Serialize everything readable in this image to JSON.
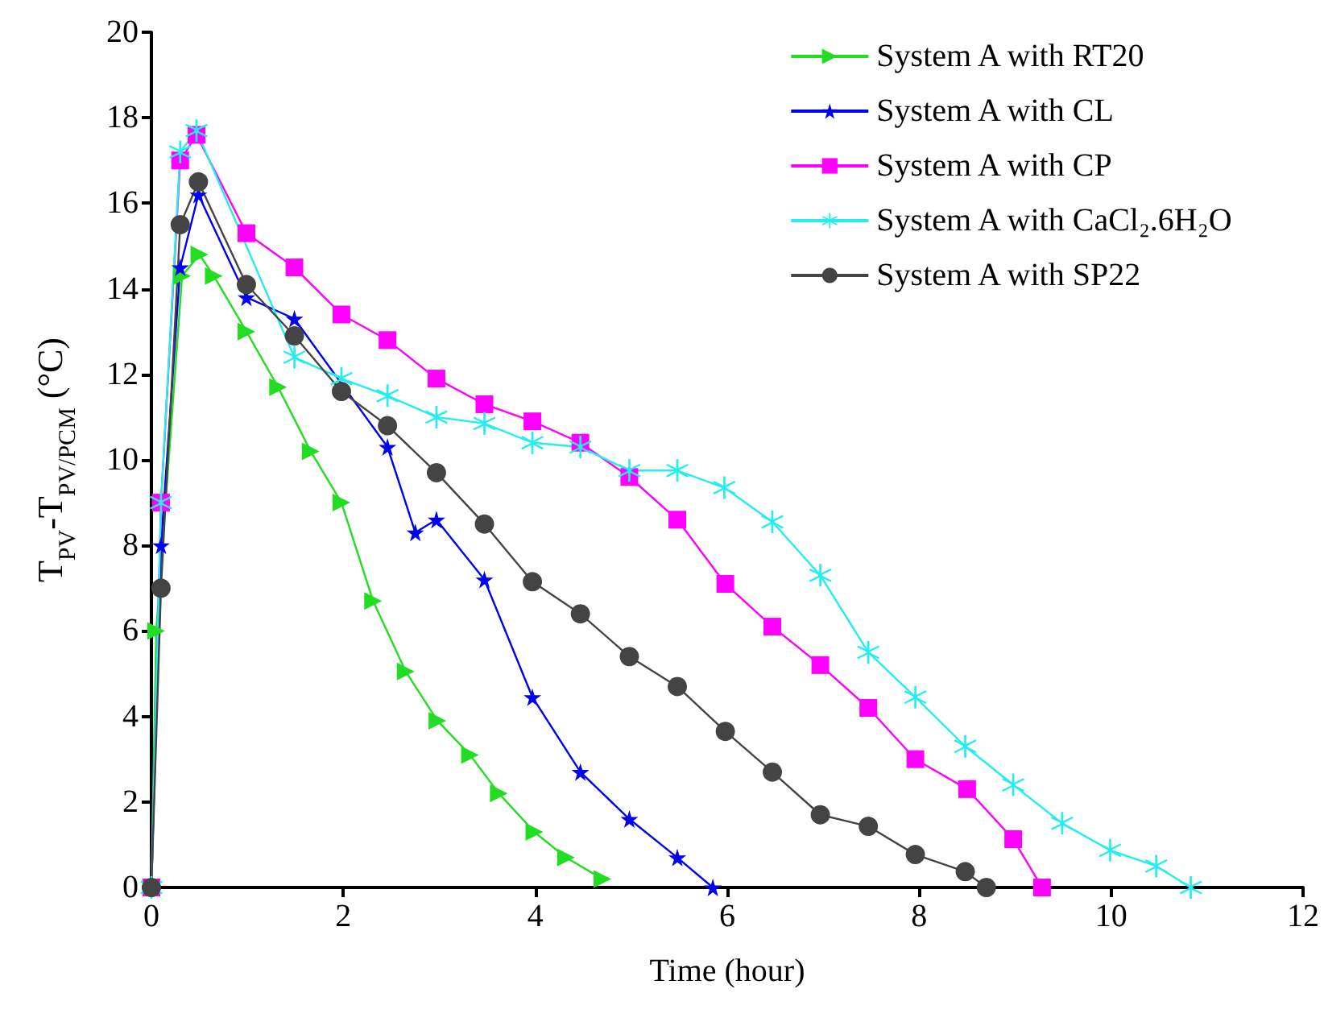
{
  "chart_data": {
    "type": "line",
    "xlabel": "Time (hour)",
    "ylabel": "T$_{PV}$-T$_{PV/PCM}$ (°C)",
    "xlim": [
      0,
      12
    ],
    "xticks": [
      0,
      2,
      4,
      6,
      8,
      10,
      12
    ],
    "ylim": [
      0,
      20
    ],
    "yticks": [
      0,
      2,
      4,
      6,
      8,
      10,
      12,
      14,
      16,
      18,
      20
    ],
    "grid": false,
    "legend": "top right",
    "line_style": "solid",
    "series": [
      {
        "name": "System A with RT20",
        "color": "#22dd22",
        "marker": "triangle",
        "x": [
          0,
          0.05,
          0.32,
          0.5,
          0.65,
          0.99,
          1.32,
          1.66,
          1.98,
          2.31,
          2.65,
          2.98,
          3.32,
          3.62,
          3.99,
          4.32,
          4.7
        ],
        "values": [
          0,
          6,
          14.3,
          14.8,
          14.3,
          13.0,
          11.7,
          10.2,
          9.0,
          6.7,
          5.05,
          3.9,
          3.1,
          2.2,
          1.3,
          0.7,
          0.2
        ]
      },
      {
        "name": "System A with CL",
        "color": "#0000ee",
        "marker": "star",
        "x": [
          0,
          0.1,
          0.3,
          0.49,
          0.99,
          1.49,
          2.46,
          2.75,
          2.97,
          3.47,
          3.97,
          4.47,
          4.98,
          5.48,
          5.85
        ],
        "values": [
          0,
          8,
          14.5,
          16.2,
          13.8,
          13.3,
          10.3,
          8.3,
          8.6,
          7.2,
          4.45,
          2.7,
          1.6,
          0.7,
          0
        ]
      },
      {
        "name": "System A with CP",
        "color": "#ff00ff",
        "marker": "square",
        "x": [
          0,
          0.1,
          0.3,
          0.47,
          0.99,
          1.49,
          1.98,
          2.46,
          2.97,
          3.47,
          3.97,
          4.47,
          4.98,
          5.48,
          5.98,
          6.47,
          6.97,
          7.47,
          7.96,
          8.5,
          8.98,
          9.28
        ],
        "values": [
          0,
          9,
          17.0,
          17.6,
          15.3,
          14.5,
          13.4,
          12.8,
          11.9,
          11.3,
          10.9,
          10.4,
          9.6,
          8.6,
          7.1,
          6.1,
          5.2,
          4.2,
          3.0,
          2.3,
          1.13,
          0
        ]
      },
      {
        "name": "System A with CaCl₂.6H₂O",
        "color": "#22eeee",
        "marker": "cross",
        "x": [
          0,
          0.1,
          0.3,
          0.47,
          1.49,
          1.98,
          2.46,
          2.97,
          3.47,
          3.97,
          4.47,
          4.98,
          5.48,
          5.97,
          6.47,
          6.97,
          7.47,
          7.96,
          8.48,
          8.98,
          9.49,
          9.99,
          10.47,
          10.83
        ],
        "values": [
          0,
          9,
          17.2,
          17.7,
          12.4,
          11.9,
          11.5,
          11.0,
          10.85,
          10.4,
          10.3,
          9.75,
          9.75,
          9.35,
          8.55,
          7.3,
          5.5,
          4.45,
          3.3,
          2.4,
          1.5,
          0.87,
          0.5,
          0
        ]
      },
      {
        "name": "System A with SP22",
        "color": "#444444",
        "marker": "circle",
        "x": [
          0,
          0.1,
          0.3,
          0.49,
          0.99,
          1.49,
          1.98,
          2.46,
          2.97,
          3.47,
          3.97,
          4.47,
          4.98,
          5.48,
          5.98,
          6.47,
          6.97,
          7.47,
          7.96,
          8.48,
          8.7
        ],
        "values": [
          0,
          7,
          15.5,
          16.5,
          14.1,
          12.9,
          11.6,
          10.8,
          9.7,
          8.5,
          7.15,
          6.4,
          5.4,
          4.7,
          3.65,
          2.7,
          1.7,
          1.43,
          0.77,
          0.37,
          0
        ]
      }
    ]
  }
}
